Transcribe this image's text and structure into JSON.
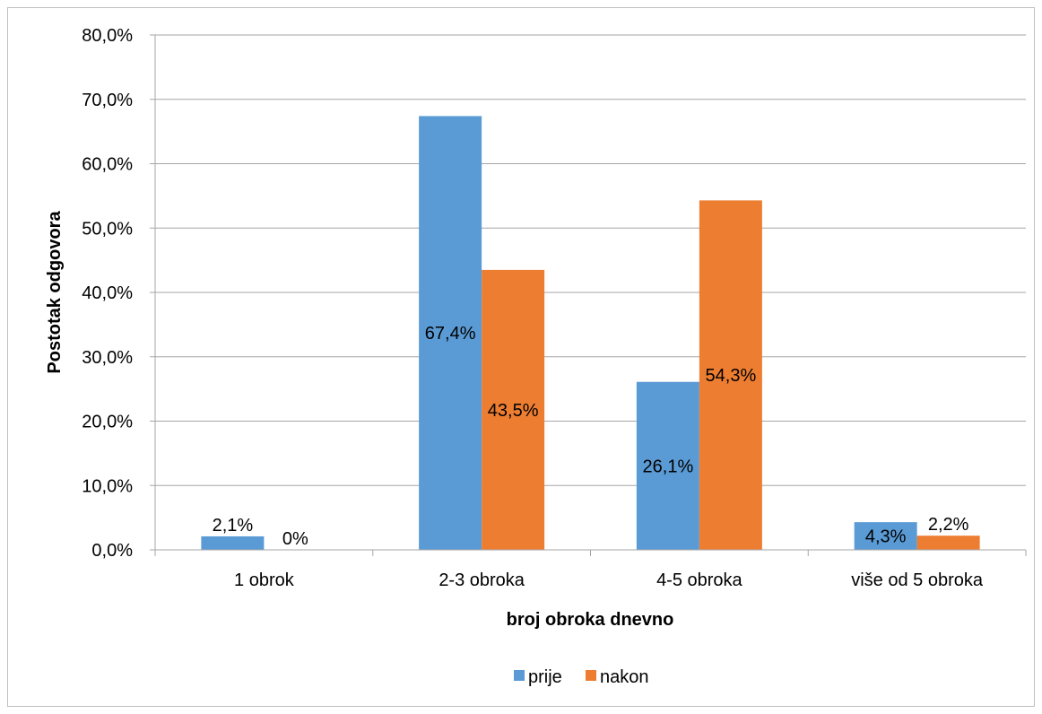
{
  "chart_data": {
    "type": "bar",
    "categories": [
      "1 obrok",
      "2-3 obroka",
      "4-5 obroka",
      "više od 5 obroka"
    ],
    "series": [
      {
        "name": "prije",
        "values": [
          2.1,
          67.4,
          26.1,
          4.3
        ],
        "labels": [
          "2,1%",
          "67,4%",
          "26,1%",
          "4,3%"
        ],
        "color": "#5b9bd5"
      },
      {
        "name": "nakon",
        "values": [
          0,
          43.5,
          54.3,
          2.2
        ],
        "labels": [
          "0%",
          "43,5%",
          "54,3%",
          "2,2%"
        ],
        "color": "#ed7d31"
      }
    ],
    "xlabel": "broj obroka dnevno",
    "ylabel": "Postotak odgovora",
    "ylim": [
      0,
      80
    ],
    "yticks": [
      0,
      10,
      20,
      30,
      40,
      50,
      60,
      70,
      80
    ],
    "ytick_labels": [
      "0,0%",
      "10,0%",
      "20,0%",
      "30,0%",
      "40,0%",
      "50,0%",
      "60,0%",
      "70,0%",
      "80,0%"
    ],
    "grid": true,
    "legend_position": "bottom"
  }
}
